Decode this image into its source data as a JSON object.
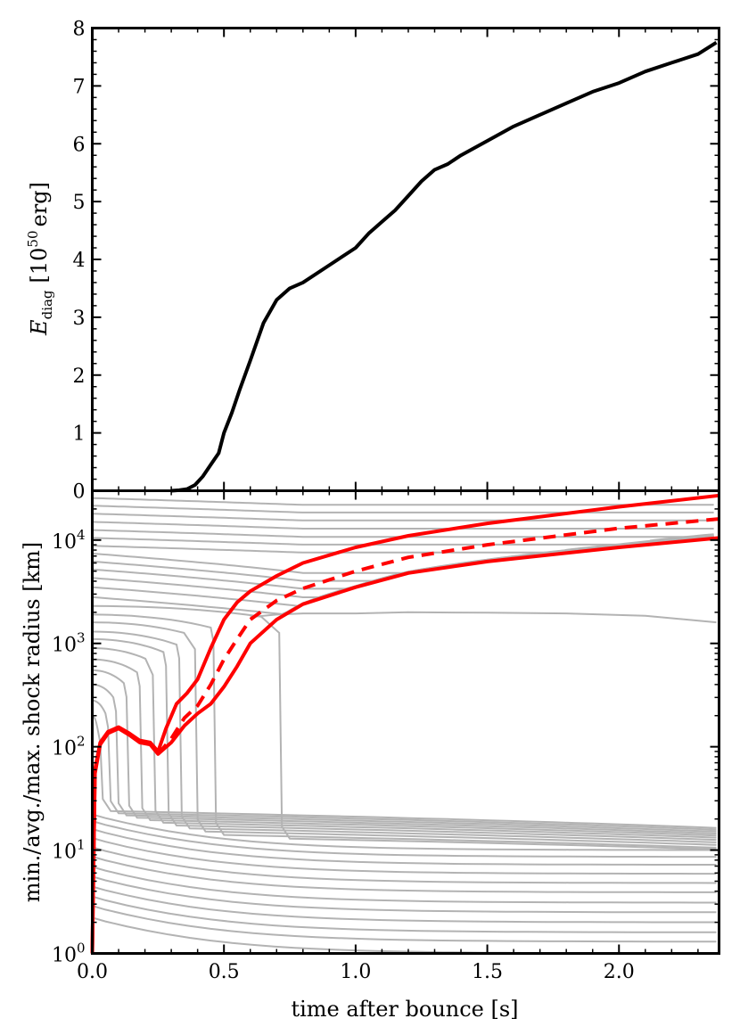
{
  "chart_data": [
    {
      "type": "line",
      "panel": "top",
      "ylabel_main": "E",
      "ylabel_sub": "diag",
      "ylabel_units_pre": "[10",
      "ylabel_units_exp": "50",
      "ylabel_units_post": "erg]",
      "xlim": [
        0,
        2.38
      ],
      "ylim": [
        0,
        8
      ],
      "yticks": [
        "0",
        "1",
        "2",
        "3",
        "4",
        "5",
        "6",
        "7",
        "8"
      ],
      "series": [
        {
          "name": "E_diag",
          "color": "#000000",
          "x": [
            0.3,
            0.33,
            0.36,
            0.39,
            0.42,
            0.45,
            0.48,
            0.5,
            0.53,
            0.56,
            0.6,
            0.65,
            0.7,
            0.75,
            0.8,
            0.9,
            1.0,
            1.05,
            1.1,
            1.15,
            1.2,
            1.25,
            1.3,
            1.35,
            1.4,
            1.5,
            1.6,
            1.7,
            1.8,
            1.9,
            2.0,
            2.1,
            2.2,
            2.3,
            2.37
          ],
          "y": [
            0,
            0.01,
            0.03,
            0.1,
            0.25,
            0.45,
            0.65,
            1.0,
            1.35,
            1.75,
            2.25,
            2.9,
            3.3,
            3.5,
            3.6,
            3.9,
            4.2,
            4.45,
            4.65,
            4.85,
            5.1,
            5.35,
            5.55,
            5.65,
            5.8,
            6.05,
            6.3,
            6.5,
            6.7,
            6.9,
            7.05,
            7.25,
            7.4,
            7.55,
            7.75
          ]
        }
      ]
    },
    {
      "type": "line",
      "panel": "bottom",
      "yscale": "log",
      "ylabel": "min./avg./max. shock radius [km]",
      "xlabel": "time after bounce [s]",
      "xlim": [
        0,
        2.38
      ],
      "ylim": [
        1,
        30000
      ],
      "xticks": [
        "0.0",
        "0.5",
        "1.0",
        "1.5",
        "2.0"
      ],
      "ytick_base": "10",
      "yticks_exp": [
        "0",
        "1",
        "2",
        "3",
        "4"
      ],
      "series": [
        {
          "name": "max shock radius",
          "color": "#ff0000",
          "style": "solid",
          "x": [
            0,
            0.01,
            0.03,
            0.06,
            0.1,
            0.14,
            0.18,
            0.22,
            0.25,
            0.28,
            0.32,
            0.36,
            0.4,
            0.45,
            0.5,
            0.55,
            0.6,
            0.7,
            0.8,
            1.0,
            1.2,
            1.5,
            2.0,
            2.38
          ],
          "y": [
            1,
            60,
            110,
            140,
            155,
            135,
            115,
            110,
            90,
            150,
            260,
            330,
            450,
            900,
            1700,
            2500,
            3200,
            4500,
            6000,
            8500,
            11000,
            14500,
            21000,
            27000
          ]
        },
        {
          "name": "avg shock radius",
          "color": "#ff0000",
          "style": "dashed",
          "x": [
            0.25,
            0.3,
            0.35,
            0.4,
            0.45,
            0.5,
            0.55,
            0.6,
            0.7,
            0.8,
            1.0,
            1.2,
            1.5,
            2.0,
            2.38
          ],
          "y": [
            85,
            120,
            190,
            250,
            400,
            700,
            1100,
            1700,
            2600,
            3400,
            5000,
            6800,
            9000,
            13000,
            16000
          ]
        },
        {
          "name": "min shock radius",
          "color": "#ff0000",
          "style": "solid",
          "x": [
            0,
            0.01,
            0.03,
            0.06,
            0.1,
            0.14,
            0.18,
            0.22,
            0.25,
            0.3,
            0.35,
            0.4,
            0.45,
            0.5,
            0.55,
            0.6,
            0.7,
            0.8,
            1.0,
            1.2,
            1.5,
            2.0,
            2.38
          ],
          "y": [
            1,
            55,
            105,
            135,
            150,
            130,
            110,
            105,
            85,
            110,
            160,
            210,
            260,
            380,
            600,
            1000,
            1700,
            2400,
            3500,
            4800,
            6200,
            8500,
            10500
          ]
        }
      ],
      "background_lines": {
        "color": "#b3b3b3",
        "description": "mass-shell trajectories",
        "infalling_start_radii": [
          200,
          280,
          400,
          550,
          700,
          900,
          1100,
          1300,
          1600,
          1900,
          2300
        ],
        "infalling_drop_times": [
          0.02,
          0.05,
          0.08,
          0.12,
          0.17,
          0.22,
          0.27,
          0.32,
          0.38,
          0.45,
          0.7
        ],
        "outer_shell_radii": [
          2800,
          3500,
          4300,
          5200,
          6200,
          7400,
          8800,
          10500,
          12500,
          15000,
          18000,
          21500,
          25500
        ],
        "inner_shell_radii": [
          1.0,
          1.3,
          1.6,
          2.0,
          2.5,
          3.1,
          3.9,
          4.8,
          5.9,
          7.2,
          8.6,
          10.0
        ]
      }
    }
  ]
}
